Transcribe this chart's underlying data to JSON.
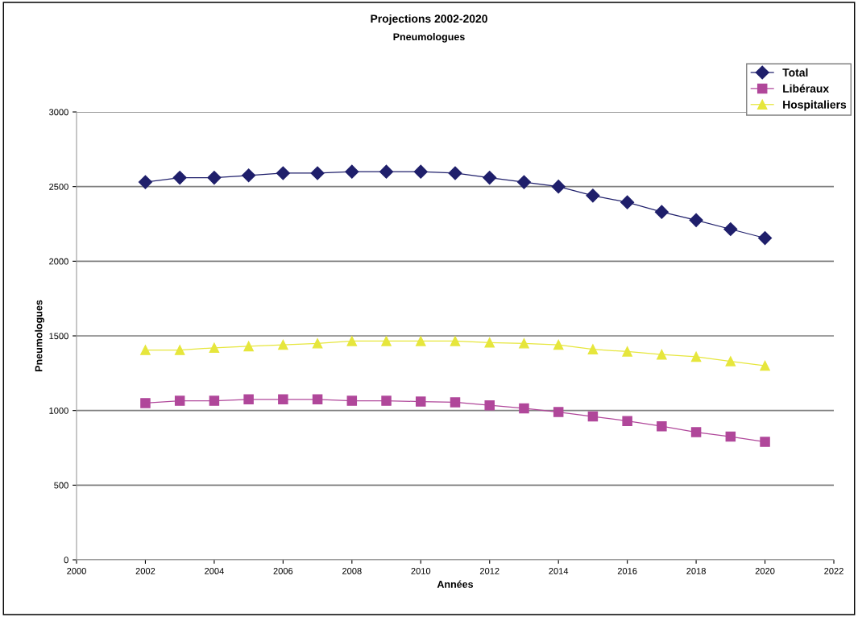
{
  "chart_data": {
    "type": "line",
    "title": "Projections 2002-2020",
    "subtitle": "Pneumologues",
    "xlabel": "Années",
    "ylabel": "Pneumologues",
    "x": [
      2002,
      2003,
      2004,
      2005,
      2006,
      2007,
      2008,
      2009,
      2010,
      2011,
      2012,
      2013,
      2014,
      2015,
      2016,
      2017,
      2018,
      2019,
      2020
    ],
    "series": [
      {
        "name": "Total",
        "color": "#1f1f6b",
        "marker": "diamond",
        "values": [
          2530,
          2560,
          2560,
          2575,
          2590,
          2590,
          2600,
          2600,
          2600,
          2590,
          2560,
          2530,
          2500,
          2440,
          2395,
          2330,
          2275,
          2215,
          2155
        ]
      },
      {
        "name": "Libéraux",
        "color": "#b0479a",
        "marker": "square",
        "values": [
          1050,
          1065,
          1065,
          1075,
          1075,
          1075,
          1065,
          1065,
          1060,
          1055,
          1035,
          1015,
          990,
          960,
          930,
          895,
          855,
          825,
          790
        ]
      },
      {
        "name": "Hospitaliers",
        "color": "#e6e63c",
        "marker": "triangle",
        "values": [
          1405,
          1405,
          1420,
          1430,
          1440,
          1450,
          1465,
          1465,
          1465,
          1465,
          1455,
          1450,
          1440,
          1410,
          1395,
          1375,
          1360,
          1330,
          1300
        ]
      }
    ],
    "xlim": [
      2000,
      2022
    ],
    "xticks": [
      2000,
      2002,
      2004,
      2006,
      2008,
      2010,
      2012,
      2014,
      2016,
      2018,
      2020,
      2022
    ],
    "ylim": [
      0,
      3000
    ],
    "yticks": [
      0,
      500,
      1000,
      1500,
      2000,
      2500,
      3000
    ],
    "grid": "y",
    "legend": "top right",
    "line_style": "solid"
  }
}
